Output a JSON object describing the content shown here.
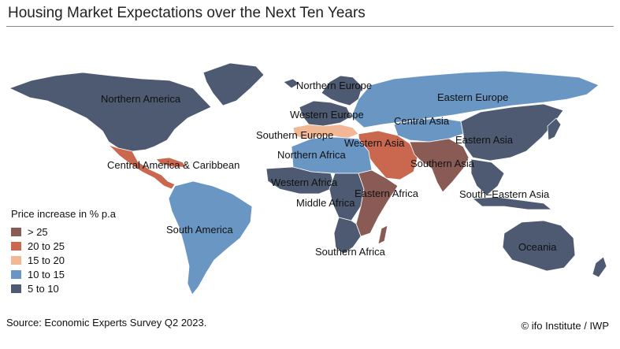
{
  "title": "Housing Market Expectations over the Next Ten Years",
  "source": "Source: Economic Experts Survey Q2 2023.",
  "credit": "© ifo Institute / IWP",
  "legend": {
    "title": "Price increase in % p.a",
    "items": [
      {
        "label": "> 25",
        "color": "#8a5a54"
      },
      {
        "label": "20 to 25",
        "color": "#c9684e"
      },
      {
        "label": "15 to 20",
        "color": "#f2b896"
      },
      {
        "label": "10 to 15",
        "color": "#6a96c4"
      },
      {
        "label": "5 to 10",
        "color": "#4d5a72"
      }
    ]
  },
  "regions": [
    {
      "name": "Northern America",
      "category": "5 to 10"
    },
    {
      "name": "Central America & Caribbean",
      "category": "20 to 25"
    },
    {
      "name": "South America",
      "category": "10 to 15"
    },
    {
      "name": "Northern Europe",
      "category": "5 to 10"
    },
    {
      "name": "Western Europe",
      "category": "5 to 10"
    },
    {
      "name": "Southern Europe",
      "category": "15 to 20"
    },
    {
      "name": "Eastern Europe",
      "category": "10 to 15"
    },
    {
      "name": "Central Asia",
      "category": "10 to 15"
    },
    {
      "name": "Western Asia",
      "category": "20 to 25"
    },
    {
      "name": "Southern Asia",
      "category": "> 25"
    },
    {
      "name": "Eastern Asia",
      "category": "5 to 10"
    },
    {
      "name": "South–Eastern Asia",
      "category": "5 to 10"
    },
    {
      "name": "Oceania",
      "category": "5 to 10"
    },
    {
      "name": "Northern Africa",
      "category": "10 to 15"
    },
    {
      "name": "Western Africa",
      "category": "5 to 10"
    },
    {
      "name": "Middle Africa",
      "category": "5 to 10"
    },
    {
      "name": "Eastern Africa",
      "category": "> 25"
    },
    {
      "name": "Southern Africa",
      "category": "5 to 10"
    }
  ]
}
